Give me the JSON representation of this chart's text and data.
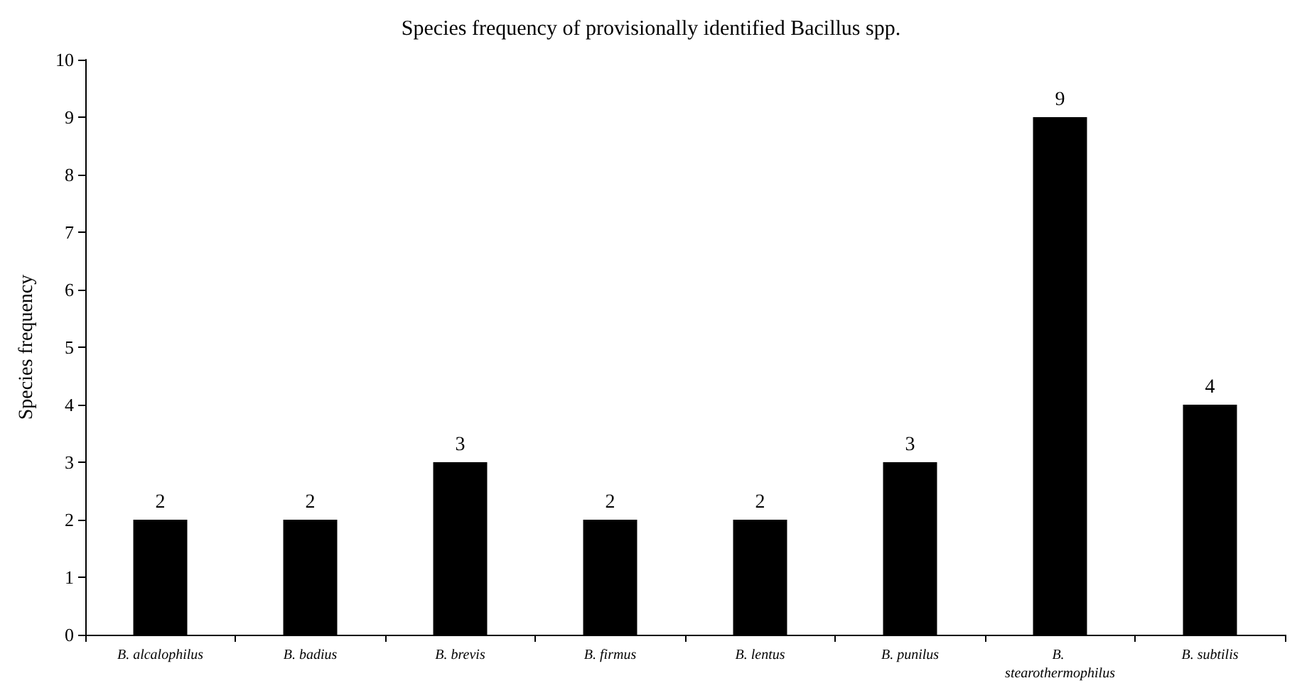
{
  "chart_data": {
    "type": "bar",
    "title": "Species frequency of provisionally identified Bacillus spp.",
    "ylabel": "Species frequency",
    "categories": [
      "B. alcalophilus",
      "B. badius",
      "B. brevis",
      "B. firmus",
      "B. lentus",
      "B. punilus",
      "B. stearothermophilus",
      "B. subtilis"
    ],
    "values": [
      2,
      2,
      3,
      2,
      2,
      3,
      9,
      4
    ],
    "color": "#000000",
    "ylim": [
      0,
      10
    ],
    "yticks": [
      0,
      1,
      2,
      3,
      4,
      5,
      6,
      7,
      8,
      9,
      10
    ],
    "grid": false,
    "data_labels": true
  }
}
